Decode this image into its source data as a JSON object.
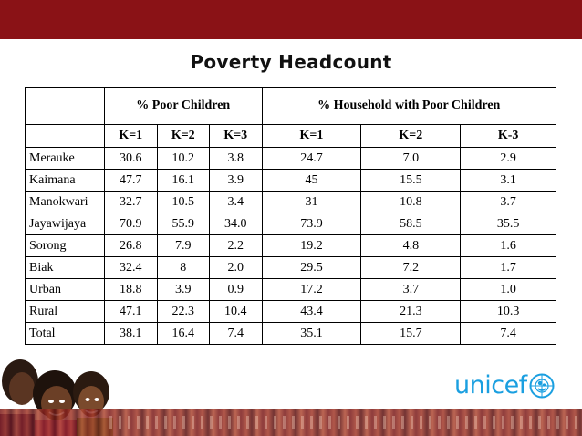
{
  "title": "Poverty Headcount",
  "groups": [
    "% Poor Children",
    "% Household with Poor Children"
  ],
  "k_headers": [
    "K=1",
    "K=2",
    "K=3",
    "K=1",
    "K=2",
    "K-3"
  ],
  "rows": [
    {
      "region": "Merauke",
      "values": [
        "30.6",
        "10.2",
        "3.8",
        "24.7",
        "7.0",
        "2.9"
      ]
    },
    {
      "region": "Kaimana",
      "values": [
        "47.7",
        "16.1",
        "3.9",
        "45",
        "15.5",
        "3.1"
      ]
    },
    {
      "region": "Manokwari",
      "values": [
        "32.7",
        "10.5",
        "3.4",
        "31",
        "10.8",
        "3.7"
      ]
    },
    {
      "region": "Jayawijaya",
      "values": [
        "70.9",
        "55.9",
        "34.0",
        "73.9",
        "58.5",
        "35.5"
      ]
    },
    {
      "region": "Sorong",
      "values": [
        "26.8",
        "7.9",
        "2.2",
        "19.2",
        "4.8",
        "1.6"
      ]
    },
    {
      "region": "Biak",
      "values": [
        "32.4",
        "8",
        "2.0",
        "29.5",
        "7.2",
        "1.7"
      ]
    },
    {
      "region": "Urban",
      "values": [
        "18.8",
        "3.9",
        "0.9",
        "17.2",
        "3.7",
        "1.0"
      ]
    },
    {
      "region": "Rural",
      "values": [
        "47.1",
        "22.3",
        "10.4",
        "43.4",
        "21.3",
        "10.3"
      ]
    },
    {
      "region": "Total",
      "values": [
        "38.1",
        "16.4",
        "7.4",
        "35.1",
        "15.7",
        "7.4"
      ]
    }
  ],
  "logo": {
    "text": "unicef",
    "icon": "unicef-emblem-icon",
    "color": "#1a9fe0"
  },
  "colors": {
    "band": "#8a1216"
  }
}
